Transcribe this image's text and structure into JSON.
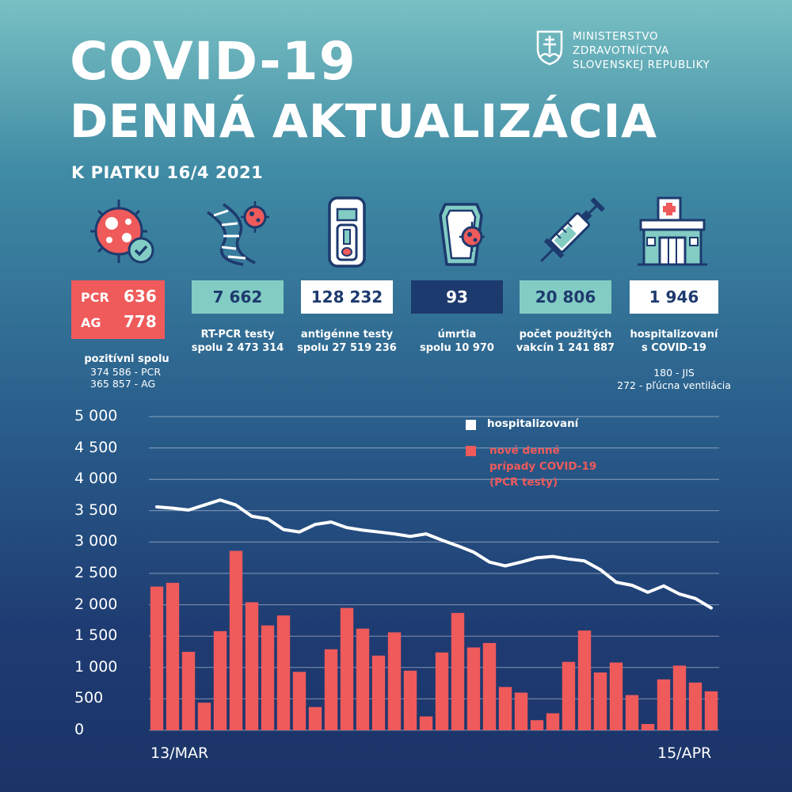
{
  "header": {
    "title_line1": "COVID-19",
    "title_line2": "DENNÁ AKTUALIZÁCIA",
    "date": "K PIATKU 16/4 2021"
  },
  "ministry": {
    "line1": "MINISTERSTVO",
    "line2": "ZDRAVOTNÍCTVA",
    "line3": "SLOVENSKEJ REPUBLIKY"
  },
  "stats": {
    "positive": {
      "pcr_label": "PCR",
      "pcr_value": "636",
      "ag_label": "AG",
      "ag_value": "778",
      "caption": "pozitívni spolu",
      "note1": "374 586 - PCR",
      "note2": "365 857 - AG"
    },
    "rtpcr": {
      "value": "7 662",
      "caption1": "RT-PCR testy",
      "caption2": "spolu 2 473 314"
    },
    "antigen": {
      "value": "128 232",
      "caption1": "antigénne testy",
      "caption2": "spolu 27 519 236"
    },
    "deaths": {
      "value": "93",
      "caption1": "úmrtia",
      "caption2": "spolu 10 970"
    },
    "vaccines": {
      "value": "20 806",
      "caption1": "počet použitých",
      "caption2": "vakcín 1 241 887"
    },
    "hospital": {
      "value": "1 946",
      "caption1": "hospitalizovaní",
      "caption2": "s COVID-19",
      "note1": "180 - JIS",
      "note2": "272 - pľúcna ventilácia"
    }
  },
  "icons": [
    "virus-icon",
    "dna-virus-icon",
    "antigen-test-icon",
    "coffin-icon",
    "syringe-icon",
    "hospital-icon"
  ],
  "colors": {
    "red": "#ef5a5a",
    "teal": "#82ccc4",
    "navy": "#1d3a6e",
    "white": "#ffffff"
  },
  "chart_data": {
    "type": "bar",
    "ylim": [
      0,
      5000
    ],
    "yticks": [
      "5 000",
      "4 500",
      "4 000",
      "3 500",
      "3 000",
      "2 500",
      "2 000",
      "1 500",
      "1 000",
      "500",
      "0"
    ],
    "x_start_label": "13/MAR",
    "x_end_label": "15/APR",
    "grid": true,
    "legend_position": "top-center",
    "series": [
      {
        "name": "nové denné prípady COVID-19 (PCR testy)",
        "legend_lines": [
          "nové denné",
          "prípady COVID-19",
          "(PCR testy)"
        ],
        "type": "bar",
        "color": "#ef5a5a",
        "values": [
          2290,
          2350,
          1250,
          440,
          1580,
          2860,
          2040,
          1670,
          1830,
          930,
          370,
          1290,
          1950,
          1620,
          1190,
          1560,
          950,
          220,
          1240,
          1870,
          1320,
          1390,
          690,
          600,
          160,
          270,
          1090,
          1590,
          920,
          1080,
          560,
          100,
          810,
          1030,
          760,
          620
        ]
      },
      {
        "name": "hospitalizovaní",
        "legend_lines": [
          "hospitalizovaní"
        ],
        "type": "line",
        "color": "#ffffff",
        "values": [
          3560,
          3540,
          3510,
          3590,
          3670,
          3590,
          3410,
          3370,
          3200,
          3160,
          3280,
          3320,
          3230,
          3190,
          3160,
          3130,
          3090,
          3130,
          3030,
          2940,
          2840,
          2680,
          2620,
          2680,
          2750,
          2770,
          2730,
          2700,
          2560,
          2360,
          2310,
          2200,
          2300,
          2170,
          2100,
          1950
        ]
      }
    ]
  }
}
